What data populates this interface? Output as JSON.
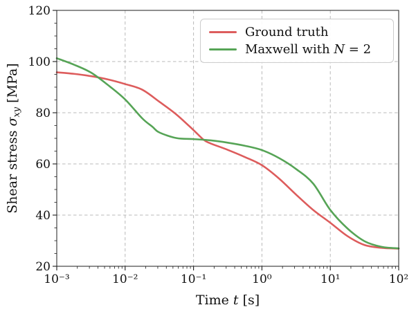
{
  "figure": {
    "background": "#ffffff",
    "frame_color": "#1c1c1c",
    "grid_color": "#b8b8b8",
    "tick_color": "#1c1c1c"
  },
  "chart_data": {
    "type": "line",
    "title": "",
    "x_scale": "log",
    "xlim_log10": [
      -3,
      2
    ],
    "ylim": [
      20,
      120
    ],
    "grid": true,
    "legend_position": "upper right",
    "xlabel_parts": {
      "prefix": "Time ",
      "math": "t",
      "suffix": " [s]"
    },
    "ylabel_parts": {
      "prefix": "Shear stress ",
      "math": "σ",
      "sub": "xy",
      "suffix": " [MPa]"
    },
    "x_tick_log10": [
      -3,
      -2,
      -1,
      0,
      1,
      2
    ],
    "x_tick_labels": [
      "10⁻³",
      "10⁻²",
      "10⁻¹",
      "10⁰",
      "10¹",
      "10²"
    ],
    "y_ticks": [
      20,
      40,
      60,
      80,
      100,
      120
    ],
    "y_tick_labels": [
      "20",
      "40",
      "60",
      "80",
      "100",
      "120"
    ],
    "series": [
      {
        "name": "Ground truth",
        "color": "#dd5c5c",
        "points_log10t_mpa": [
          [
            -3.0,
            95.8
          ],
          [
            -2.75,
            95.2
          ],
          [
            -2.5,
            94.3
          ],
          [
            -2.25,
            93.0
          ],
          [
            -2.0,
            91.2
          ],
          [
            -1.75,
            89.0
          ],
          [
            -1.5,
            84.3
          ],
          [
            -1.25,
            79.3
          ],
          [
            -1.0,
            73.2
          ],
          [
            -0.85,
            69.4
          ],
          [
            -0.75,
            68.0
          ],
          [
            -0.5,
            65.5
          ],
          [
            -0.25,
            62.7
          ],
          [
            0.0,
            59.5
          ],
          [
            0.25,
            54.3
          ],
          [
            0.5,
            48.0
          ],
          [
            0.75,
            42.0
          ],
          [
            1.0,
            37.0
          ],
          [
            1.25,
            31.8
          ],
          [
            1.5,
            28.3
          ],
          [
            1.75,
            27.2
          ],
          [
            2.0,
            26.9
          ]
        ]
      },
      {
        "name": "Maxwell with N = 2",
        "color": "#56a456",
        "points_log10t_mpa": [
          [
            -3.0,
            101.3
          ],
          [
            -2.75,
            98.8
          ],
          [
            -2.5,
            95.7
          ],
          [
            -2.25,
            90.8
          ],
          [
            -2.0,
            85.2
          ],
          [
            -1.75,
            77.8
          ],
          [
            -1.6,
            74.5
          ],
          [
            -1.5,
            72.3
          ],
          [
            -1.25,
            70.1
          ],
          [
            -1.0,
            69.7
          ],
          [
            -0.75,
            69.2
          ],
          [
            -0.5,
            68.3
          ],
          [
            -0.25,
            67.1
          ],
          [
            0.0,
            65.4
          ],
          [
            0.25,
            62.3
          ],
          [
            0.5,
            58.0
          ],
          [
            0.75,
            52.3
          ],
          [
            1.0,
            42.0
          ],
          [
            1.25,
            34.8
          ],
          [
            1.5,
            29.8
          ],
          [
            1.75,
            27.6
          ],
          [
            2.0,
            27.0
          ]
        ]
      }
    ]
  },
  "legend": {
    "items": [
      {
        "label": "Ground truth"
      },
      {
        "label_prefix": "Maxwell with ",
        "label_math": "N",
        "label_suffix": " = 2"
      }
    ]
  }
}
